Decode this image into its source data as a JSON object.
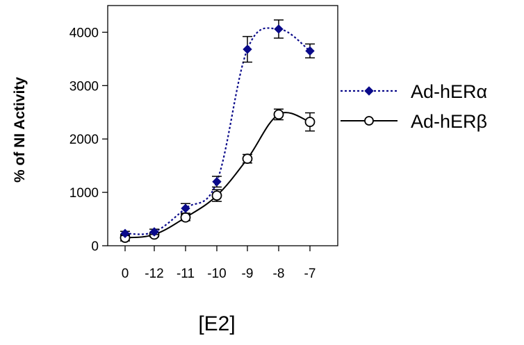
{
  "chart_data": {
    "type": "line",
    "xlabel": "[E2]",
    "ylabel": "% of NI Activity",
    "categories": [
      "0",
      "-12",
      "-11",
      "-10",
      "-9",
      "-8",
      "-7"
    ],
    "ylim": [
      0,
      4500
    ],
    "yticks": [
      0,
      1000,
      2000,
      3000,
      4000
    ],
    "legend_position": "right",
    "series": [
      {
        "name": "Ad-hERα",
        "color": "#0a0a8a",
        "line_style": "dotted",
        "marker": "diamond-filled",
        "values": [
          230,
          260,
          700,
          1200,
          3680,
          4060,
          3650
        ],
        "errors": [
          40,
          50,
          90,
          100,
          240,
          170,
          130
        ]
      },
      {
        "name": "Ad-hERβ",
        "color": "#000000",
        "line_style": "solid",
        "marker": "circle-open",
        "values": [
          150,
          210,
          530,
          940,
          1630,
          2460,
          2320
        ],
        "errors": [
          60,
          40,
          60,
          110,
          80,
          100,
          170
        ]
      }
    ]
  }
}
